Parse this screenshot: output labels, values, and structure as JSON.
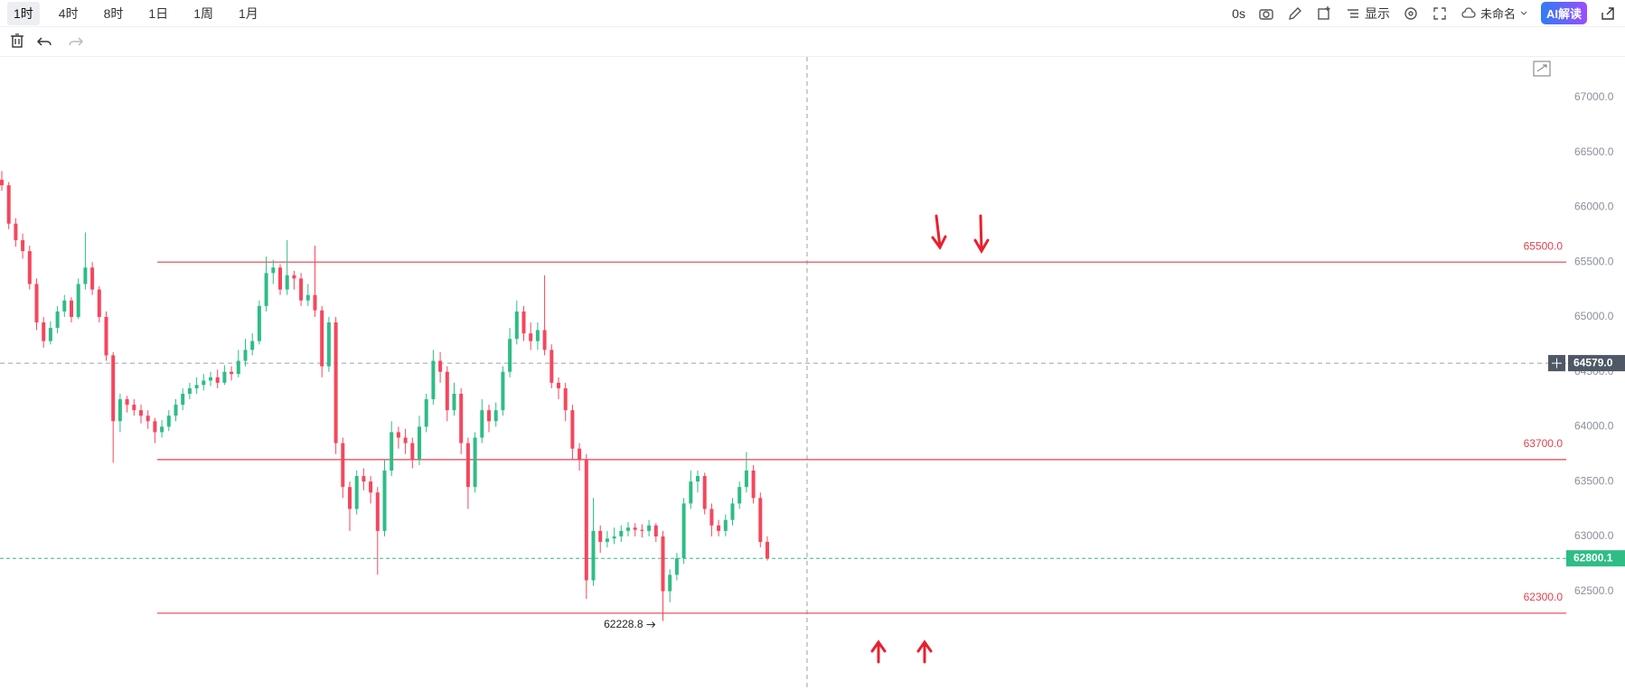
{
  "toolbar": {
    "intervals": [
      "1时",
      "4时",
      "8时",
      "1日",
      "1周",
      "1月"
    ],
    "timer": "0s",
    "display": "显示",
    "layout_name": "未命名",
    "ai": "AI解读"
  },
  "chart_data": {
    "type": "candlestick",
    "up_color": "#2ebd85",
    "down_color": "#f6465d",
    "ylim": [
      61600,
      67370
    ],
    "yticks": [
      {
        "value": 62500,
        "label": "62500.0"
      },
      {
        "value": 63000,
        "label": "63000.0"
      },
      {
        "value": 63500,
        "label": "63500.0"
      },
      {
        "value": 64000,
        "label": "64000.0"
      },
      {
        "value": 64500,
        "label": "64500.0"
      },
      {
        "value": 65000,
        "label": "65000.0"
      },
      {
        "value": 65500,
        "label": "65500.0"
      },
      {
        "value": 66000,
        "label": "66000.0"
      },
      {
        "value": 66500,
        "label": "66500.0"
      },
      {
        "value": 67000,
        "label": "67000.0"
      }
    ],
    "levels": [
      {
        "value": 65500,
        "label": "65500.0"
      },
      {
        "value": 63700,
        "label": "63700.0"
      },
      {
        "value": 62300,
        "label": "62300.0"
      }
    ],
    "level_color": "#e0424f",
    "last_price": {
      "value": 62800.1,
      "label": "62800.1"
    },
    "crosshair": {
      "value": 64579,
      "label": "64579.0"
    },
    "ohlc": [
      [
        66250,
        66330,
        66150,
        66200
      ],
      [
        66200,
        66230,
        65800,
        65850
      ],
      [
        65850,
        65900,
        65640,
        65700
      ],
      [
        65700,
        65760,
        65530,
        65600
      ],
      [
        65600,
        65650,
        65250,
        65300
      ],
      [
        65300,
        65350,
        64880,
        64950
      ],
      [
        64950,
        65000,
        64720,
        64780
      ],
      [
        64780,
        64960,
        64750,
        64900
      ],
      [
        64900,
        65100,
        64850,
        65050
      ],
      [
        65050,
        65200,
        65000,
        65150
      ],
      [
        65150,
        65180,
        64950,
        65000
      ],
      [
        65000,
        65350,
        64980,
        65300
      ],
      [
        65300,
        65770,
        65250,
        65450
      ],
      [
        65450,
        65500,
        65200,
        65250
      ],
      [
        65250,
        65280,
        64950,
        65000
      ],
      [
        65000,
        65050,
        64600,
        64650
      ],
      [
        64650,
        64680,
        63670,
        64050
      ],
      [
        64050,
        64300,
        63950,
        64250
      ],
      [
        64250,
        64280,
        64130,
        64200
      ],
      [
        64200,
        64250,
        64100,
        64150
      ],
      [
        64150,
        64200,
        64030,
        64100
      ],
      [
        64100,
        64150,
        63980,
        64050
      ],
      [
        64050,
        64080,
        63850,
        63950
      ],
      [
        63950,
        64060,
        63900,
        64000
      ],
      [
        64000,
        64150,
        63960,
        64100
      ],
      [
        64100,
        64250,
        64050,
        64200
      ],
      [
        64200,
        64350,
        64150,
        64300
      ],
      [
        64300,
        64400,
        64250,
        64350
      ],
      [
        64350,
        64450,
        64300,
        64380
      ],
      [
        64380,
        64480,
        64330,
        64420
      ],
      [
        64420,
        64500,
        64370,
        64450
      ],
      [
        64450,
        64520,
        64350,
        64400
      ],
      [
        64400,
        64560,
        64380,
        64500
      ],
      [
        64500,
        64550,
        64420,
        64480
      ],
      [
        64480,
        64700,
        64450,
        64600
      ],
      [
        64600,
        64800,
        64550,
        64700
      ],
      [
        64700,
        64850,
        64650,
        64780
      ],
      [
        64780,
        65150,
        64750,
        65100
      ],
      [
        65100,
        65550,
        65050,
        65400
      ],
      [
        65400,
        65520,
        65300,
        65450
      ],
      [
        65450,
        65480,
        65200,
        65250
      ],
      [
        65250,
        65700,
        65200,
        65380
      ],
      [
        65380,
        65420,
        65250,
        65350
      ],
      [
        65350,
        65400,
        65100,
        65150
      ],
      [
        65150,
        65300,
        65100,
        65200
      ],
      [
        65200,
        65650,
        65000,
        65060
      ],
      [
        65060,
        65100,
        64450,
        64550
      ],
      [
        64550,
        65000,
        64500,
        64950
      ],
      [
        64950,
        65000,
        63750,
        63850
      ],
      [
        63850,
        63900,
        63350,
        63450
      ],
      [
        63450,
        63500,
        63050,
        63250
      ],
      [
        63250,
        63600,
        63200,
        63550
      ],
      [
        63550,
        63620,
        63420,
        63500
      ],
      [
        63500,
        63550,
        63300,
        63400
      ],
      [
        63400,
        63450,
        62650,
        63050
      ],
      [
        63050,
        63700,
        63000,
        63600
      ],
      [
        63600,
        64050,
        63550,
        63950
      ],
      [
        63950,
        64000,
        63800,
        63900
      ],
      [
        63900,
        63980,
        63750,
        63850
      ],
      [
        63850,
        63900,
        63620,
        63700
      ],
      [
        63700,
        64100,
        63650,
        64000
      ],
      [
        64000,
        64300,
        63950,
        64250
      ],
      [
        64250,
        64700,
        64200,
        64600
      ],
      [
        64600,
        64680,
        64400,
        64500
      ],
      [
        64500,
        64550,
        64050,
        64150
      ],
      [
        64150,
        64400,
        64100,
        64300
      ],
      [
        64300,
        64350,
        63750,
        63850
      ],
      [
        63850,
        63900,
        63250,
        63450
      ],
      [
        63450,
        63950,
        63400,
        63900
      ],
      [
        63900,
        64250,
        63850,
        64150
      ],
      [
        64150,
        64200,
        63950,
        64050
      ],
      [
        64050,
        64220,
        64000,
        64150
      ],
      [
        64150,
        64550,
        64100,
        64500
      ],
      [
        64500,
        64900,
        64450,
        64800
      ],
      [
        64800,
        65150,
        64750,
        65050
      ],
      [
        65050,
        65100,
        64780,
        64850
      ],
      [
        64850,
        64950,
        64700,
        64780
      ],
      [
        64780,
        64950,
        64700,
        64880
      ],
      [
        64880,
        65380,
        64650,
        64700
      ],
      [
        64700,
        64750,
        64350,
        64400
      ],
      [
        64400,
        64450,
        64250,
        64350
      ],
      [
        64350,
        64400,
        64050,
        64150
      ],
      [
        64150,
        64200,
        63700,
        63800
      ],
      [
        63800,
        63850,
        63600,
        63700
      ],
      [
        63700,
        63750,
        62430,
        62600
      ],
      [
        62600,
        63350,
        62550,
        63050
      ],
      [
        63050,
        63100,
        62850,
        62950
      ],
      [
        62950,
        63050,
        62900,
        62980
      ],
      [
        62980,
        63080,
        62930,
        63000
      ],
      [
        63000,
        63100,
        62950,
        63050
      ],
      [
        63050,
        63130,
        63000,
        63080
      ],
      [
        63080,
        63120,
        63000,
        63060
      ],
      [
        63060,
        63110,
        62990,
        63050
      ],
      [
        63050,
        63150,
        63000,
        63100
      ],
      [
        63100,
        63120,
        62950,
        63000
      ],
      [
        63000,
        63050,
        62228.8,
        62500
      ],
      [
        62500,
        62700,
        62400,
        62650
      ],
      [
        62650,
        62850,
        62600,
        62800
      ],
      [
        62800,
        63350,
        62750,
        63300
      ],
      [
        63300,
        63600,
        63250,
        63500
      ],
      [
        63500,
        63600,
        63400,
        63550
      ],
      [
        63550,
        63580,
        63200,
        63250
      ],
      [
        63250,
        63300,
        63000,
        63100
      ],
      [
        63100,
        63150,
        63000,
        63050
      ],
      [
        63050,
        63200,
        63000,
        63150
      ],
      [
        63150,
        63350,
        63100,
        63300
      ],
      [
        63300,
        63500,
        63250,
        63450
      ],
      [
        63450,
        63770,
        63400,
        63600
      ],
      [
        63600,
        63650,
        63300,
        63350
      ],
      [
        63350,
        63400,
        62900,
        62950
      ],
      [
        62950,
        63000,
        62780,
        62800.1
      ]
    ]
  }
}
